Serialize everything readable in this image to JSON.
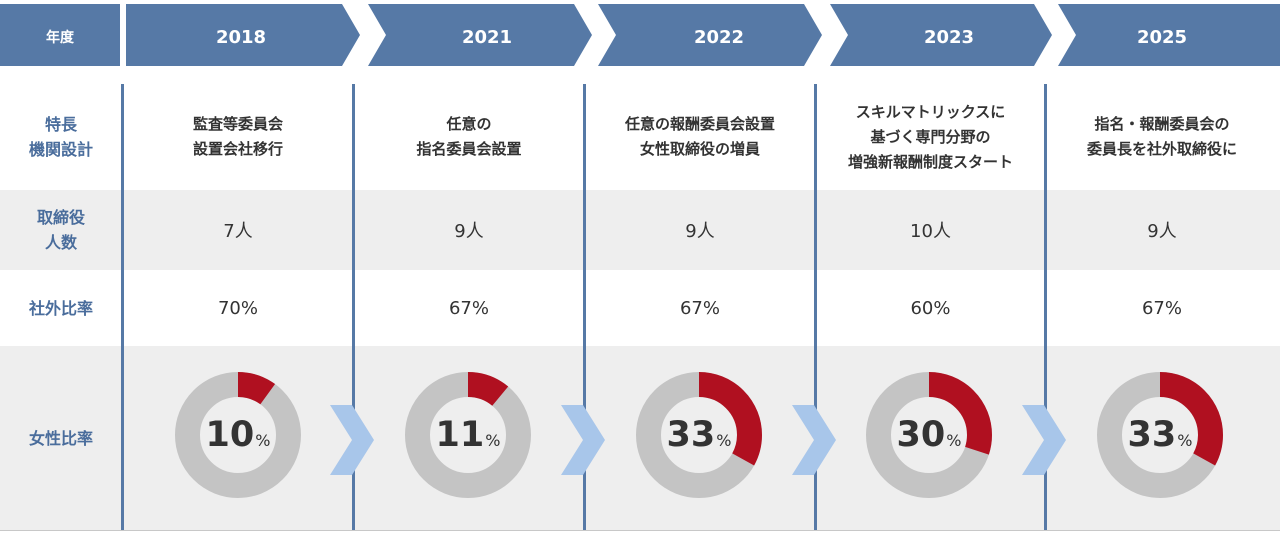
{
  "header": {
    "label": "年度",
    "years": [
      "2018",
      "2021",
      "2022",
      "2023",
      "2025"
    ]
  },
  "row_labels": {
    "features": [
      "特長",
      "機関設計"
    ],
    "directors": [
      "取締役",
      "人数"
    ],
    "outside_ratio": "社外比率",
    "female_ratio": "女性比率"
  },
  "columns": [
    {
      "year": "2018",
      "features": [
        "監査等委員会",
        "設置会社移行"
      ],
      "directors": "7人",
      "outside_ratio": "70%",
      "female_value": "10",
      "female_unit": "%"
    },
    {
      "year": "2021",
      "features": [
        "任意の",
        "指名委員会設置"
      ],
      "directors": "9人",
      "outside_ratio": "67%",
      "female_value": "11",
      "female_unit": "%"
    },
    {
      "year": "2022",
      "features": [
        "任意の報酬委員会設置",
        "女性取締役の増員"
      ],
      "directors": "9人",
      "outside_ratio": "67%",
      "female_value": "33",
      "female_unit": "%"
    },
    {
      "year": "2023",
      "features": [
        "スキルマトリックスに",
        "基づく専門分野の",
        "増強新報酬制度スタート"
      ],
      "directors": "10人",
      "outside_ratio": "60%",
      "female_value": "30",
      "female_unit": "%"
    },
    {
      "year": "2025",
      "features": [
        "指名・報酬委員会の",
        "委員長を社外取締役に"
      ],
      "directors": "9人",
      "outside_ratio": "67%",
      "female_value": "33",
      "female_unit": "%"
    }
  ],
  "chart_data": {
    "type": "pie",
    "categories": [
      "2018",
      "2021",
      "2022",
      "2023",
      "2025"
    ],
    "values": [
      10,
      11,
      33,
      30,
      33
    ],
    "unit": "%",
    "colors": {
      "highlight": "#b01020",
      "remainder": "#c4c4c4"
    }
  },
  "colors": {
    "header_fill": "#5679a6",
    "header_text": "#ffffff",
    "row_label": "#4a6d9c",
    "arrow": "#a8c6ea",
    "band": "#eeeeee"
  }
}
